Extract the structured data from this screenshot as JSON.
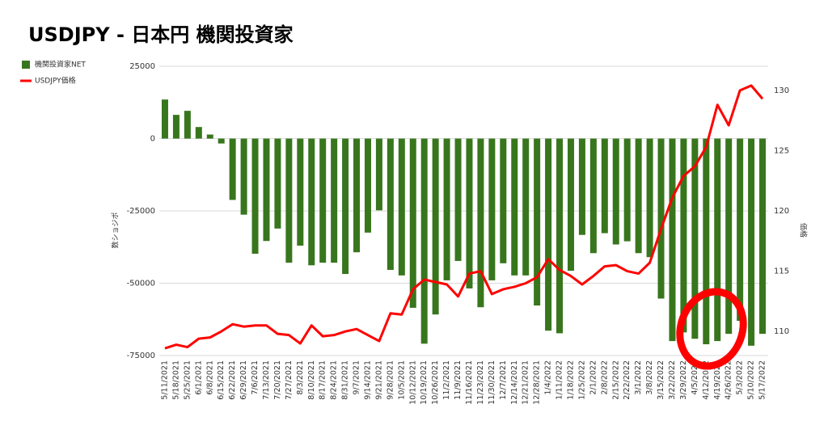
{
  "chart_data": {
    "type": "bar_line",
    "title": "USDJPY - 日本円 機関投資家",
    "y_label": "数ショジポ",
    "y2_label": "価格",
    "categories": [
      "5/11/2021",
      "5/18/2021",
      "5/25/2021",
      "6/1/2021",
      "6/8/2021",
      "6/15/2021",
      "6/22/2021",
      "6/29/2021",
      "7/6/2021",
      "7/13/2021",
      "7/20/2021",
      "7/27/2021",
      "8/3/2021",
      "8/10/2021",
      "8/17/2021",
      "8/24/2021",
      "8/31/2021",
      "9/7/2021",
      "9/14/2021",
      "9/21/2021",
      "9/28/2021",
      "10/5/2021",
      "10/12/2021",
      "10/19/2021",
      "10/26/2021",
      "11/2/2021",
      "11/9/2021",
      "11/16/2021",
      "11/23/2021",
      "11/30/2021",
      "12/7/2021",
      "12/14/2021",
      "12/21/2021",
      "12/28/2021",
      "1/4/2022",
      "1/11/2022",
      "1/18/2022",
      "1/25/2022",
      "2/1/2022",
      "2/8/2022",
      "2/15/2022",
      "2/22/2022",
      "3/1/2022",
      "3/8/2022",
      "3/15/2022",
      "3/22/2022",
      "3/29/2022",
      "4/5/2022",
      "4/12/2022",
      "4/19/2022",
      "4/26/2022",
      "5/3/2022",
      "5/10/2022",
      "5/17/2022"
    ],
    "series": [
      {
        "name": "機関投資家NET",
        "type": "bar",
        "color": "#38761d",
        "values": [
          13500,
          8200,
          9600,
          4000,
          1400,
          -1700,
          -21200,
          -26300,
          -39800,
          -35400,
          -31100,
          -42900,
          -37000,
          -43800,
          -42900,
          -42900,
          -46800,
          -39300,
          -32500,
          -24800,
          -45400,
          -47300,
          -58500,
          -70900,
          -60800,
          -49000,
          -42300,
          -51800,
          -58300,
          -49000,
          -43100,
          -47300,
          -47300,
          -57700,
          -66400,
          -67300,
          -45700,
          -33300,
          -39600,
          -32700,
          -36600,
          -35500,
          -39600,
          -41000,
          -55300,
          -70000,
          -67000,
          -69200,
          -71100,
          -70000,
          -67500,
          -63000,
          -71600,
          -67500
        ]
      },
      {
        "name": "USDJPY価格",
        "type": "line",
        "color": "#ff0000",
        "axis": "y2",
        "values": [
          108.6,
          108.9,
          108.7,
          109.4,
          109.5,
          110.0,
          110.6,
          110.4,
          110.5,
          110.5,
          109.8,
          109.7,
          109.0,
          110.5,
          109.6,
          109.7,
          110.0,
          110.2,
          109.7,
          109.2,
          111.5,
          111.4,
          113.5,
          114.3,
          114.1,
          113.9,
          112.9,
          114.8,
          115.0,
          113.1,
          113.5,
          113.7,
          114.0,
          114.5,
          116.0,
          115.1,
          114.6,
          113.9,
          114.6,
          115.4,
          115.5,
          115.0,
          114.8,
          115.7,
          118.5,
          121.1,
          122.9,
          123.7,
          125.3,
          128.8,
          127.1,
          130.0,
          130.4,
          129.3
        ]
      }
    ],
    "ylim": [
      -75000,
      25000
    ],
    "yticks": [
      -75000,
      -50000,
      -25000,
      0,
      25000
    ],
    "y2lim": [
      108,
      132
    ],
    "y2ticks": [
      110,
      115,
      120,
      125,
      130
    ],
    "grid": true,
    "legend": "top-left"
  }
}
